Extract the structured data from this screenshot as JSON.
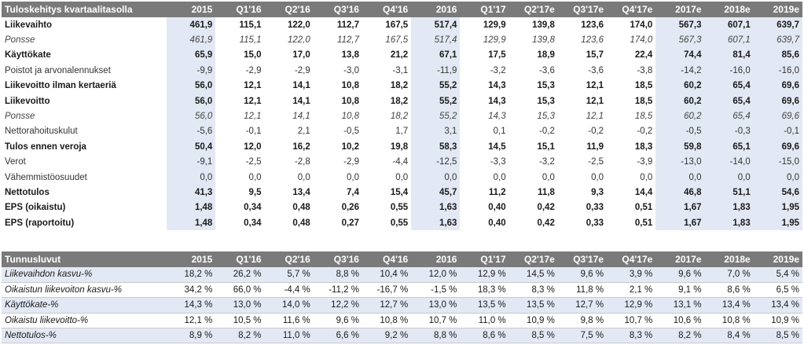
{
  "table1": {
    "title": "Tuloskehitys kvartaalitasolla",
    "columns": [
      "2015",
      "Q1'16",
      "Q2'16",
      "Q3'16",
      "Q4'16",
      "2016",
      "Q1'17",
      "Q2'17e",
      "Q3'17e",
      "Q4'17e",
      "2017e",
      "2018e",
      "2019e"
    ],
    "rows": [
      {
        "label": "Liikevaihto",
        "style": "b",
        "values": [
          "461,9",
          "115,1",
          "122,0",
          "112,7",
          "167,5",
          "517,4",
          "129,9",
          "139,8",
          "123,6",
          "174,0",
          "567,3",
          "607,1",
          "639,7"
        ]
      },
      {
        "label": "Ponsse",
        "style": "i",
        "values": [
          "461,9",
          "115,1",
          "122,0",
          "112,7",
          "167,5",
          "517,4",
          "129,9",
          "139,8",
          "123,6",
          "174,0",
          "567,3",
          "607,1",
          "639,7"
        ]
      },
      {
        "label": "Käyttökate",
        "style": "b",
        "values": [
          "65,9",
          "15,0",
          "17,0",
          "13,8",
          "21,2",
          "67,1",
          "17,5",
          "18,9",
          "15,7",
          "22,4",
          "74,4",
          "81,4",
          "85,6"
        ]
      },
      {
        "label": "Poistot ja arvonalennukset",
        "style": "n",
        "values": [
          "-9,9",
          "-2,9",
          "-2,9",
          "-3,0",
          "-3,1",
          "-11,9",
          "-3,2",
          "-3,6",
          "-3,6",
          "-3,8",
          "-14,2",
          "-16,0",
          "-16,0"
        ]
      },
      {
        "label": "Liikevoitto ilman kertaeriä",
        "style": "b",
        "values": [
          "56,0",
          "12,1",
          "14,1",
          "10,8",
          "18,2",
          "55,2",
          "14,3",
          "15,3",
          "12,1",
          "18,5",
          "60,2",
          "65,4",
          "69,6"
        ]
      },
      {
        "label": "Liikevoitto",
        "style": "b",
        "values": [
          "56,0",
          "12,1",
          "14,1",
          "10,8",
          "18,2",
          "55,2",
          "14,3",
          "15,3",
          "12,1",
          "18,5",
          "60,2",
          "65,4",
          "69,6"
        ]
      },
      {
        "label": "Ponsse",
        "style": "i",
        "values": [
          "56,0",
          "12,1",
          "14,1",
          "10,8",
          "18,2",
          "55,2",
          "14,3",
          "15,3",
          "12,1",
          "18,5",
          "60,2",
          "65,4",
          "69,6"
        ]
      },
      {
        "label": "Nettorahoituskulut",
        "style": "n",
        "values": [
          "-5,6",
          "-0,1",
          "2,1",
          "-0,5",
          "1,7",
          "3,1",
          "0,1",
          "-0,2",
          "-0,2",
          "-0,2",
          "-0,5",
          "-0,3",
          "-0,1"
        ]
      },
      {
        "label": "Tulos ennen veroja",
        "style": "b",
        "values": [
          "50,4",
          "12,0",
          "16,2",
          "10,2",
          "19,8",
          "58,3",
          "14,5",
          "15,1",
          "11,9",
          "18,3",
          "59,8",
          "65,1",
          "69,6"
        ]
      },
      {
        "label": "Verot",
        "style": "n",
        "values": [
          "-9,1",
          "-2,5",
          "-2,8",
          "-2,9",
          "-4,4",
          "-12,5",
          "-3,3",
          "-3,2",
          "-2,5",
          "-3,9",
          "-13,0",
          "-14,0",
          "-15,0"
        ]
      },
      {
        "label": "Vähemmistöosuudet",
        "style": "n",
        "values": [
          "0,0",
          "0,0",
          "0,0",
          "0,0",
          "0,0",
          "0,0",
          "0,0",
          "0,0",
          "0,0",
          "0,0",
          "0,0",
          "0,0",
          "0,0"
        ]
      },
      {
        "label": "Nettotulos",
        "style": "b",
        "values": [
          "41,3",
          "9,5",
          "13,4",
          "7,4",
          "15,4",
          "45,7",
          "11,2",
          "11,8",
          "9,3",
          "14,4",
          "46,8",
          "51,1",
          "54,6"
        ]
      },
      {
        "label": "EPS (oikaistu)",
        "style": "b",
        "values": [
          "1,48",
          "0,34",
          "0,48",
          "0,26",
          "0,55",
          "1,63",
          "0,40",
          "0,42",
          "0,33",
          "0,51",
          "1,67",
          "1,83",
          "1,95"
        ]
      },
      {
        "label": "EPS (raportoitu)",
        "style": "b",
        "values": [
          "1,48",
          "0,34",
          "0,48",
          "0,27",
          "0,55",
          "1,63",
          "0,40",
          "0,42",
          "0,33",
          "0,51",
          "1,67",
          "1,83",
          "1,95"
        ]
      }
    ]
  },
  "table2": {
    "title": "Tunnusluvut",
    "columns": [
      "2015",
      "Q1'16",
      "Q2'16",
      "Q3'16",
      "Q4'16",
      "2016",
      "Q1'17",
      "Q2'17e",
      "Q3'17e",
      "Q4'17e",
      "2017e",
      "2018e",
      "2019e"
    ],
    "rows": [
      {
        "label": "Liikevaihdon kasvu-%",
        "values": [
          "18,2 %",
          "26,2 %",
          "5,7 %",
          "8,8 %",
          "10,4 %",
          "12,0 %",
          "12,9 %",
          "14,5 %",
          "9,6 %",
          "3,9 %",
          "9,6 %",
          "7,0 %",
          "5,4 %"
        ]
      },
      {
        "label": "Oikaistun liikevoiton kasvu-%",
        "values": [
          "34,2 %",
          "66,0 %",
          "-4,4 %",
          "-11,2 %",
          "-16,7 %",
          "-1,5 %",
          "18,3 %",
          "8,3 %",
          "11,8 %",
          "2,1 %",
          "9,1 %",
          "8,6 %",
          "6,5 %"
        ]
      },
      {
        "label": "Käyttökate-%",
        "values": [
          "14,3 %",
          "13,0 %",
          "14,0 %",
          "12,2 %",
          "12,7 %",
          "13,0 %",
          "13,5 %",
          "13,5 %",
          "12,7 %",
          "12,9 %",
          "13,1 %",
          "13,4 %",
          "13,4 %"
        ]
      },
      {
        "label": "Oikaistu liikevoitto-%",
        "values": [
          "12,1 %",
          "10,5 %",
          "11,6 %",
          "9,6 %",
          "10,8 %",
          "10,7 %",
          "11,0 %",
          "10,9 %",
          "9,8 %",
          "10,7 %",
          "10,6 %",
          "10,8 %",
          "10,9 %"
        ]
      },
      {
        "label": "Nettotulos-%",
        "values": [
          "8,9 %",
          "8,2 %",
          "11,0 %",
          "6,6 %",
          "9,2 %",
          "8,8 %",
          "8,6 %",
          "8,5 %",
          "7,5 %",
          "8,3 %",
          "8,2 %",
          "8,4 %",
          "8,5 %"
        ]
      }
    ]
  }
}
